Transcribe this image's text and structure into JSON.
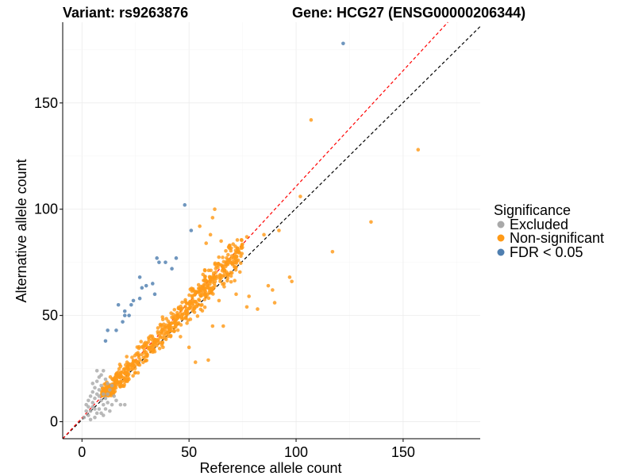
{
  "chart_data": {
    "type": "scatter",
    "title_left": "Variant: rs9263876",
    "title_right": "Gene: HCG27 (ENSG00000206344)",
    "xlabel": "Reference allele count",
    "ylabel": "Alternative allele count",
    "xlim": [
      -9,
      186
    ],
    "ylim": [
      -8,
      188
    ],
    "x_ticks": [
      0,
      50,
      100,
      150
    ],
    "y_ticks": [
      0,
      50,
      100,
      150
    ],
    "x_tick_labels": [
      "0",
      "50",
      "100",
      "150"
    ],
    "y_tick_labels": [
      "0",
      "50",
      "100",
      "150"
    ],
    "grid": true,
    "legend": {
      "title": "Significance",
      "position": "right",
      "entries": [
        {
          "label": "Excluded",
          "color": "#a9a9a9"
        },
        {
          "label": "Non-significant",
          "color": "#ff9a17"
        },
        {
          "label": "FDR < 0.05",
          "color": "#4f7fb0"
        }
      ]
    },
    "reference_lines": [
      {
        "name": "identity",
        "slope": 1.0,
        "intercept": 0,
        "color": "#000000",
        "style": "dashed"
      },
      {
        "name": "fitted",
        "slope": 1.1,
        "intercept": 0,
        "color": "#ff0000",
        "style": "dashed"
      }
    ],
    "series": [
      {
        "name": "FDR < 0.05",
        "color": "#4f7fb0",
        "points": [
          [
            122,
            178
          ],
          [
            48,
            102
          ],
          [
            51,
            90
          ],
          [
            44,
            77
          ],
          [
            42,
            72
          ],
          [
            35,
            77
          ],
          [
            36,
            75
          ],
          [
            30,
            64
          ],
          [
            33,
            65
          ],
          [
            34,
            60
          ],
          [
            28,
            63
          ],
          [
            27,
            58
          ],
          [
            23,
            55
          ],
          [
            17,
            55
          ],
          [
            20,
            52
          ],
          [
            19,
            47
          ],
          [
            20,
            50
          ],
          [
            22,
            50
          ],
          [
            16,
            43
          ],
          [
            12,
            43
          ],
          [
            11,
            38
          ],
          [
            27,
            68
          ],
          [
            24,
            57
          ],
          [
            39,
            75
          ]
        ]
      },
      {
        "name": "Non-significant",
        "color": "#ff9a17",
        "outliers": [
          [
            107,
            142
          ],
          [
            157,
            128
          ],
          [
            102,
            106
          ],
          [
            135,
            94
          ],
          [
            62,
            100
          ],
          [
            117,
            80
          ],
          [
            97,
            68
          ],
          [
            98,
            66
          ],
          [
            89,
            62
          ],
          [
            90,
            56
          ],
          [
            82,
            53
          ],
          [
            77,
            54
          ],
          [
            78,
            59
          ],
          [
            87,
            64
          ],
          [
            85,
            88
          ],
          [
            77,
            87
          ],
          [
            92,
            90
          ],
          [
            73,
            76
          ],
          [
            61,
            96
          ],
          [
            55,
            92
          ],
          [
            60,
            88
          ],
          [
            69,
            83
          ],
          [
            65,
            85
          ],
          [
            58,
            84
          ],
          [
            70,
            78
          ],
          [
            66,
            72
          ],
          [
            64,
            57
          ],
          [
            72,
            60
          ],
          [
            56,
            55
          ],
          [
            59,
            29
          ],
          [
            53,
            28
          ],
          [
            50,
            35
          ],
          [
            46,
            40
          ],
          [
            61,
            45
          ],
          [
            66,
            45
          ]
        ],
        "cloud": {
          "count": 640,
          "x_range": [
            9,
            75
          ],
          "y_range": [
            12,
            86
          ],
          "center_slope": 1.05,
          "spread": 13
        }
      },
      {
        "name": "Excluded",
        "color": "#a9a9a9",
        "points": [
          [
            3,
            3
          ],
          [
            4,
            5
          ],
          [
            2,
            8
          ],
          [
            5,
            7
          ],
          [
            6,
            2
          ],
          [
            7,
            4
          ],
          [
            8,
            6
          ],
          [
            3,
            10
          ],
          [
            4,
            12
          ],
          [
            6,
            11
          ],
          [
            5,
            14
          ],
          [
            7,
            13
          ],
          [
            9,
            10
          ],
          [
            10,
            8
          ],
          [
            11,
            11
          ],
          [
            8,
            15
          ],
          [
            6,
            16
          ],
          [
            9,
            17
          ],
          [
            7,
            19
          ],
          [
            5,
            18
          ],
          [
            8,
            21
          ],
          [
            9,
            22
          ],
          [
            10,
            24
          ],
          [
            7,
            24
          ],
          [
            11,
            20
          ],
          [
            12,
            18
          ],
          [
            13,
            15
          ],
          [
            10,
            13
          ],
          [
            12,
            9
          ],
          [
            14,
            8
          ],
          [
            11,
            6
          ],
          [
            15,
            12
          ],
          [
            16,
            10
          ],
          [
            13,
            5
          ],
          [
            9,
            4
          ],
          [
            4,
            1
          ],
          [
            2,
            5
          ],
          [
            1,
            2
          ],
          [
            6,
            6
          ],
          [
            10,
            3
          ],
          [
            18,
            8
          ],
          [
            20,
            8
          ],
          [
            14,
            17
          ],
          [
            3,
            7
          ],
          [
            5,
            9
          ],
          [
            8,
            12
          ],
          [
            12,
            13
          ]
        ]
      }
    ]
  }
}
